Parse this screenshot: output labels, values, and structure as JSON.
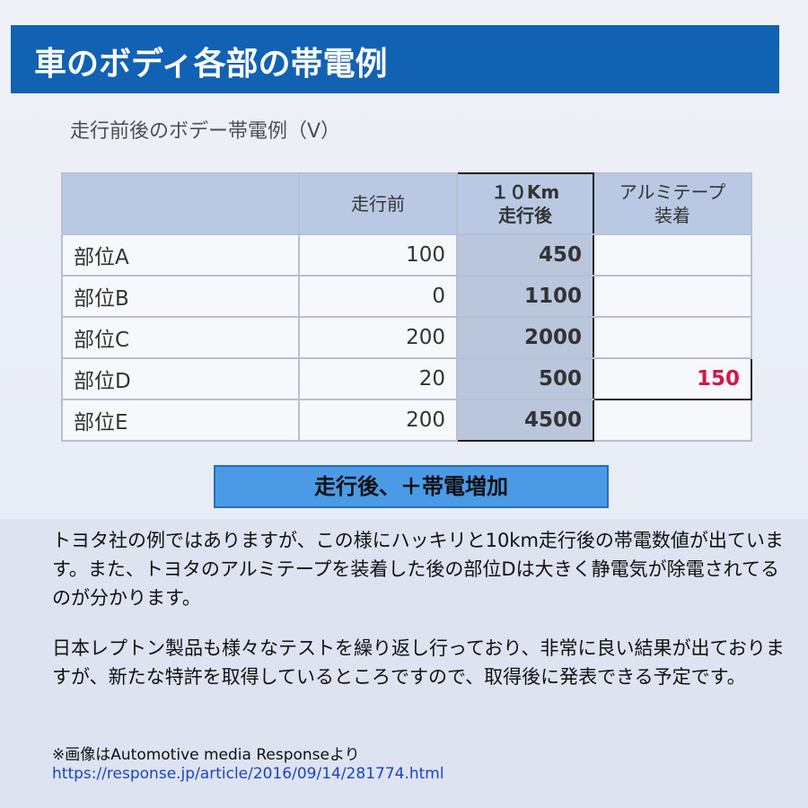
{
  "title": "車のボディ各部の帯電例",
  "subtitle": "走行前後のボデー帯電例（V）",
  "table": {
    "headers": [
      "",
      "走行前",
      "１０Km\n走行後",
      "アルミテープ\n装着"
    ],
    "rows": [
      {
        "part": "部位A",
        "before": "100",
        "after": "450",
        "tape": ""
      },
      {
        "part": "部位B",
        "before": "0",
        "after": "1100",
        "tape": ""
      },
      {
        "part": "部位C",
        "before": "200",
        "after": "2000",
        "tape": ""
      },
      {
        "part": "部位D",
        "before": "20",
        "after": "500",
        "tape": "150"
      },
      {
        "part": "部位E",
        "before": "200",
        "after": "4500",
        "tape": ""
      }
    ]
  },
  "banner": "走行後、＋帯電増加",
  "paragraph1": "トヨタ社の例ではありますが、この様にハッキリと10km走行後の帯電数値が出ています。また、トヨタのアルミテープを装着した後の部位Dは大きく静電気が除電されてるのが分かります。",
  "paragraph2": "日本レプトン製品も様々なテストを繰り返し行っており、非常に良い結果が出ておりますが、新たな特許を取得しているところですので、取得後に発表できる予定です。",
  "credit": "※画像はAutomotive media Responseより",
  "link": "https://response.jp/article/2016/09/14/281774.html",
  "colors": {
    "title_bar": "#1262b3",
    "highlight": "#d0194a",
    "link": "#1a44c0"
  }
}
